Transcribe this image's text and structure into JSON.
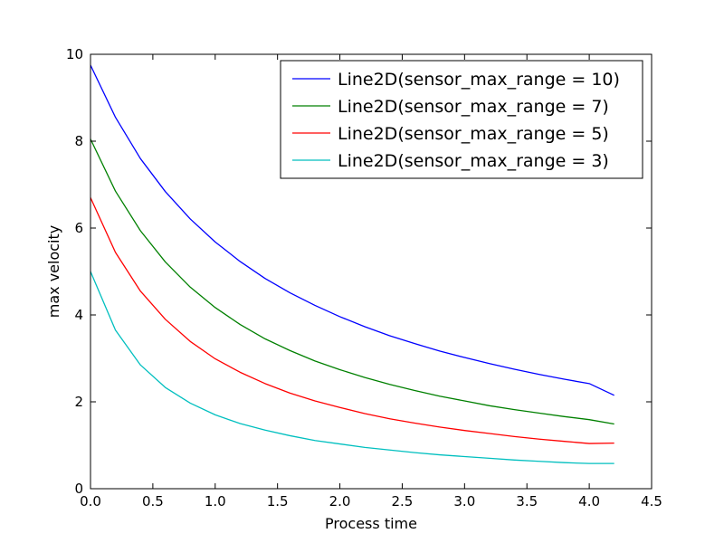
{
  "chart_data": {
    "type": "line",
    "title": "",
    "xlabel": "Process time",
    "ylabel": "max velocity",
    "xlim": [
      0,
      4.5
    ],
    "ylim": [
      0,
      10
    ],
    "xticks": [
      "0.0",
      "0.5",
      "1.0",
      "1.5",
      "2.0",
      "2.5",
      "3.0",
      "3.5",
      "4.0",
      "4.5"
    ],
    "yticks": [
      "0",
      "2",
      "4",
      "6",
      "8",
      "10"
    ],
    "grid": false,
    "legend_position": "top-right",
    "x": [
      0,
      0.2,
      0.4,
      0.6,
      0.8,
      1.0,
      1.2,
      1.4,
      1.6,
      1.8,
      2.0,
      2.2,
      2.4,
      2.6,
      2.8,
      3.0,
      3.2,
      3.4,
      3.6,
      3.8,
      4.0,
      4.2
    ],
    "series": [
      {
        "name": "Line2D(sensor_max_range = 10)",
        "color": "#0000ff",
        "values": [
          9.75,
          8.55,
          7.6,
          6.84,
          6.21,
          5.68,
          5.23,
          4.84,
          4.51,
          4.22,
          3.96,
          3.73,
          3.52,
          3.34,
          3.17,
          3.02,
          2.88,
          2.75,
          2.63,
          2.52,
          2.42,
          2.15
        ]
      },
      {
        "name": "Line2D(sensor_max_range = 7)",
        "color": "#008000",
        "values": [
          8.05,
          6.85,
          5.94,
          5.22,
          4.64,
          4.17,
          3.78,
          3.45,
          3.18,
          2.94,
          2.74,
          2.56,
          2.4,
          2.26,
          2.13,
          2.02,
          1.91,
          1.82,
          1.74,
          1.66,
          1.59,
          1.49
        ]
      },
      {
        "name": "Line2D(sensor_max_range = 5)",
        "color": "#ff0000",
        "values": [
          6.7,
          5.44,
          4.55,
          3.9,
          3.39,
          2.99,
          2.68,
          2.42,
          2.2,
          2.02,
          1.87,
          1.73,
          1.61,
          1.51,
          1.42,
          1.34,
          1.27,
          1.2,
          1.14,
          1.09,
          1.04,
          1.05
        ]
      },
      {
        "name": "Line2D(sensor_max_range = 3)",
        "color": "#00bfbf",
        "values": [
          5.0,
          3.65,
          2.85,
          2.33,
          1.97,
          1.7,
          1.5,
          1.35,
          1.22,
          1.11,
          1.03,
          0.95,
          0.89,
          0.83,
          0.78,
          0.74,
          0.7,
          0.66,
          0.63,
          0.6,
          0.58,
          0.58
        ]
      }
    ]
  }
}
